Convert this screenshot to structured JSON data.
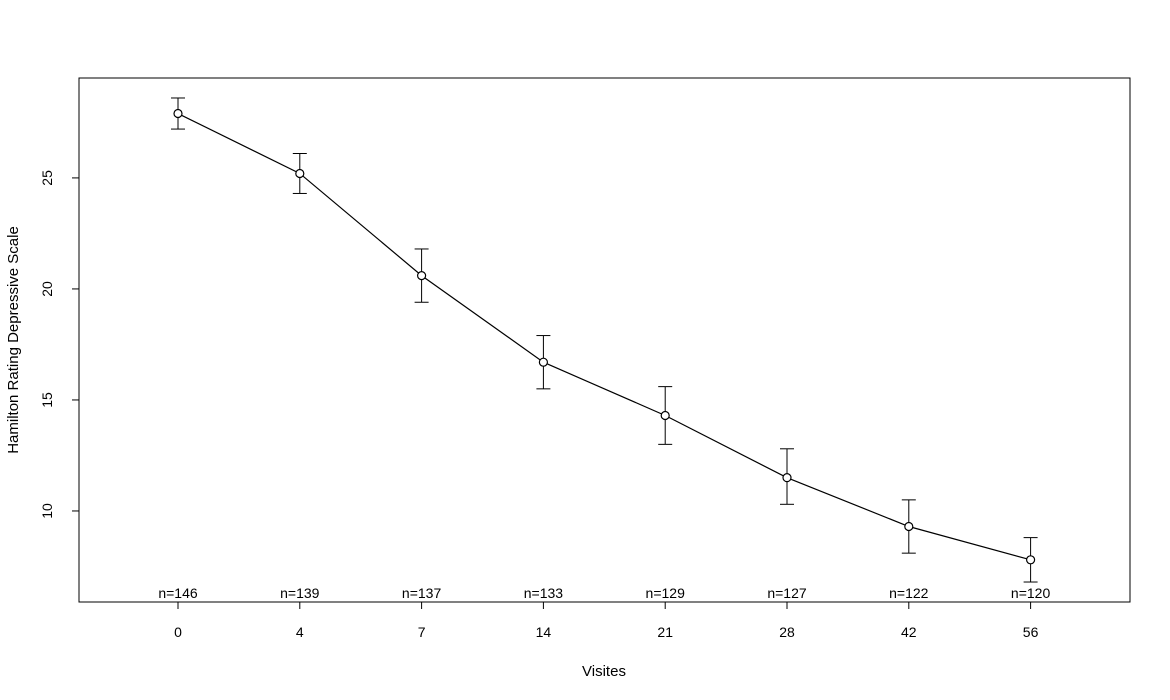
{
  "chart_data": {
    "type": "line",
    "title": "",
    "xlabel": "Visites",
    "ylabel": "Hamilton Rating Depressive Scale",
    "categories": [
      "0",
      "4",
      "7",
      "14",
      "21",
      "28",
      "42",
      "56"
    ],
    "y_ticks": [
      10,
      15,
      20,
      25
    ],
    "ylim": [
      5.9,
      29.5
    ],
    "grid": false,
    "legend": "none",
    "series": [
      {
        "values": [
          27.9,
          25.2,
          20.6,
          16.7,
          14.3,
          11.5,
          9.3,
          7.8
        ],
        "error_upper": [
          28.6,
          26.1,
          21.8,
          17.9,
          15.6,
          12.8,
          10.5,
          8.8
        ],
        "error_lower": [
          27.2,
          24.3,
          19.4,
          15.5,
          13.0,
          10.3,
          8.1,
          6.8
        ]
      }
    ],
    "annotations": [
      "n=146",
      "n=139",
      "n=137",
      "n=133",
      "n=129",
      "n=127",
      "n=122",
      "n=120"
    ]
  }
}
